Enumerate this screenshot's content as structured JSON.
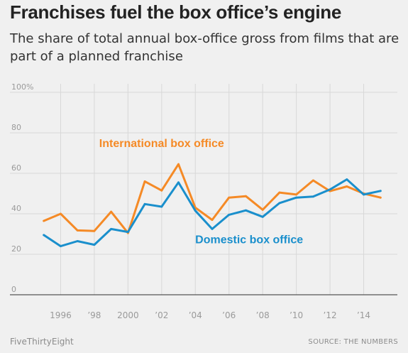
{
  "header": {
    "title": "Franchises fuel the box office’s engine",
    "subtitle": "The share of total annual box-office gross from films that are part of a planned franchise"
  },
  "footer": {
    "brand": "FiveThirtyEight",
    "source": "SOURCE: THE NUMBERS"
  },
  "colors": {
    "international": "#f58a26",
    "domestic": "#1a8fcc",
    "grid": "#d8d8d8",
    "axis_text": "#9a9a9a"
  },
  "chart_data": {
    "type": "line",
    "title": "Franchises fuel the box office’s engine",
    "subtitle": "The share of total annual box-office gross from films that are part of a planned franchise",
    "x": [
      1995,
      1996,
      1997,
      1998,
      1999,
      2000,
      2001,
      2002,
      2003,
      2004,
      2005,
      2006,
      2007,
      2008,
      2009,
      2010,
      2011,
      2012,
      2013,
      2014,
      2015
    ],
    "series": [
      {
        "name": "International box office",
        "color": "#f58a26",
        "values": [
          36.5,
          40,
          31.8,
          31.5,
          41,
          30.5,
          56,
          51.5,
          64.5,
          43,
          37,
          48,
          48.7,
          42,
          50.5,
          49.5,
          56.5,
          51.2,
          53.5,
          50,
          48
        ]
      },
      {
        "name": "Domestic box office",
        "color": "#1a8fcc",
        "values": [
          29.5,
          24,
          26.5,
          24.7,
          32.5,
          31,
          44.8,
          43.5,
          55.5,
          41.5,
          32.5,
          39.5,
          41.7,
          38.5,
          45.3,
          48,
          48.5,
          52,
          57,
          49.5,
          51.3
        ]
      }
    ],
    "xlim": [
      1994,
      2016
    ],
    "ylim": [
      0,
      100
    ],
    "y_ticks": [
      0,
      20,
      40,
      60,
      80,
      100
    ],
    "y_tick_labels": [
      "0",
      "20",
      "40",
      "60",
      "80",
      "100%"
    ],
    "x_ticks": [
      1996,
      1998,
      2000,
      2002,
      2004,
      2006,
      2008,
      2010,
      2012,
      2014
    ],
    "x_tick_labels": [
      "1996",
      "’98",
      "2000",
      "’02",
      "’04",
      "’06",
      "’08",
      "’10",
      "’12",
      "’14"
    ],
    "xlabel": "",
    "ylabel": "",
    "grid": true,
    "annotations": [
      {
        "text": "International box office",
        "series": 0,
        "x": 2002,
        "y": 73
      },
      {
        "text": "Domestic box office",
        "series": 1,
        "x": 2007.2,
        "y": 25.5
      }
    ]
  }
}
